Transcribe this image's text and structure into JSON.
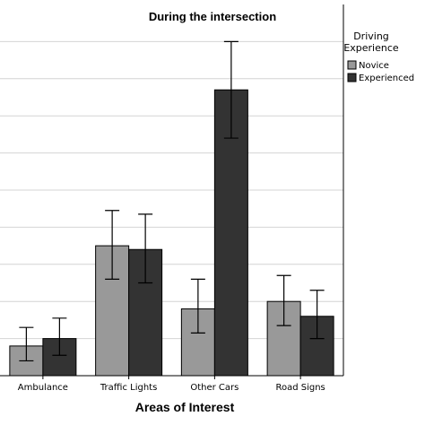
{
  "chart_data": {
    "type": "bar",
    "title": "During the intersection",
    "xlabel": "Areas of Interest",
    "ylabel": "",
    "categories": [
      "Ambulance",
      "Traffic Lights",
      "Other Cars",
      "Road Signs"
    ],
    "series": [
      {
        "name": "Novice",
        "color": "#999999",
        "values": [
          0.8,
          3.5,
          1.8,
          2.0
        ],
        "err_low": [
          0.4,
          2.6,
          1.15,
          1.35
        ],
        "err_high": [
          1.3,
          4.45,
          2.6,
          2.7
        ]
      },
      {
        "name": "Experienced",
        "color": "#333333",
        "values": [
          1.0,
          3.4,
          7.7,
          1.6
        ],
        "err_low": [
          0.55,
          2.5,
          6.4,
          1.0
        ],
        "err_high": [
          1.55,
          4.35,
          9.0,
          2.3
        ]
      }
    ],
    "ylim": [
      0,
      10
    ],
    "yticks": [
      0,
      1,
      2,
      3,
      4,
      5,
      6,
      7,
      8,
      9
    ],
    "ytick_labels_visible": false,
    "grid": true,
    "legend": {
      "title_line1": "Driving",
      "title_line2": "Experience",
      "placement": "right"
    }
  }
}
